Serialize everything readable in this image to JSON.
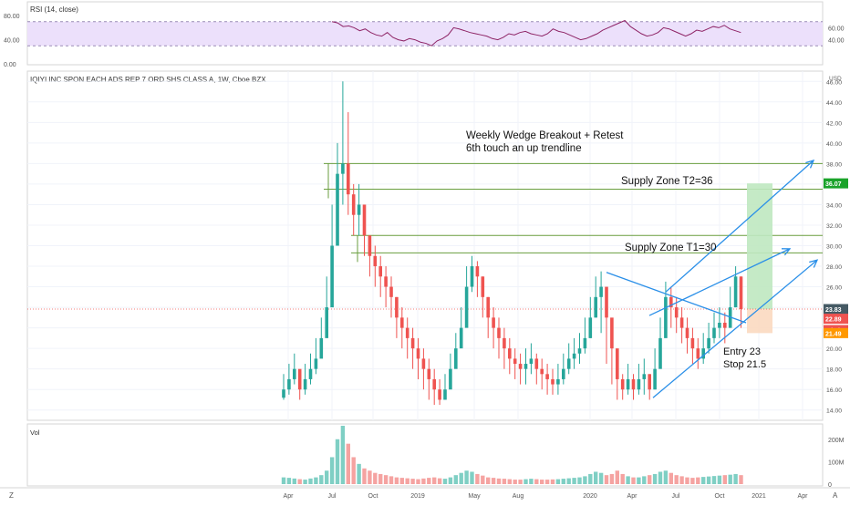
{
  "colors": {
    "up": "#26a69a",
    "down": "#ef5350",
    "up_vol": "#7fcfc4",
    "down_vol": "#f5a3a1",
    "rsi_line": "#8e2466",
    "rsi_band": "#ece0fb",
    "trend": "#2a8fe8",
    "zone": "#6a9e3f",
    "target_box": "#bfe8c0",
    "stop_box": "#fbd9c0",
    "price_tag": "#26a69a",
    "target_tag": "#1aa32a",
    "stop_tag": "#ff9800"
  },
  "rsi_panel": {
    "label": "RSI (14, close)",
    "axis_left": [
      "80.00",
      "40.00",
      "0.00"
    ],
    "axis_right": [
      "60.00",
      "40.00"
    ]
  },
  "price_panel": {
    "symbol_title": "IQIYI INC SPON EACH ADS REP 7 ORD SHS CLASS A, 1W, Cboe BZX",
    "currency": "USD",
    "annotations": {
      "headline_1": "Weekly Wedge Breakout + Retest",
      "headline_2": "6th touch an up trendline",
      "supply_t2": "Supply Zone   T2=36",
      "supply_t1": "Supply Zone   T1=30",
      "entry": "Entry 23",
      "stop": "Stop 21.5"
    },
    "price_tags": {
      "target": "36.07",
      "current": "23.83",
      "mid": "22.89",
      "countdown": "2d 4h",
      "stop": "21.49"
    }
  },
  "volume_panel": {
    "label": "Vol",
    "axis": [
      "200M",
      "100M",
      "0"
    ]
  },
  "time_axis": [
    "Apr",
    "Jul",
    "Oct",
    "2019",
    "May",
    "Aug",
    "2020",
    "Apr",
    "Jul",
    "Oct",
    "2021",
    "Apr"
  ],
  "corner_left": "Z",
  "corner_right": "A",
  "chart_data": [
    {
      "type": "line",
      "name": "rsi",
      "title": "RSI (14, close)",
      "ylim": [
        0,
        100
      ],
      "yticks": [
        60,
        40
      ],
      "values": [
        70,
        68,
        62,
        63,
        60,
        55,
        58,
        52,
        48,
        46,
        52,
        44,
        40,
        38,
        42,
        40,
        36,
        34,
        30,
        38,
        42,
        48,
        60,
        58,
        55,
        52,
        50,
        48,
        46,
        42,
        40,
        44,
        50,
        48,
        52,
        54,
        50,
        48,
        46,
        50,
        58,
        54,
        52,
        48,
        44,
        40,
        42,
        46,
        50,
        56,
        60,
        64,
        68,
        72,
        62,
        56,
        50,
        46,
        48,
        52,
        60,
        58,
        54,
        50,
        46,
        50,
        56,
        54,
        58,
        62,
        60,
        64,
        58,
        55,
        52
      ]
    },
    {
      "type": "candlestick",
      "name": "price",
      "ylabel": "USD",
      "ylim": [
        13,
        47
      ],
      "yticks": [
        14,
        16,
        18,
        20,
        22,
        24,
        26,
        28,
        30,
        32,
        34,
        36,
        38,
        40,
        42,
        44,
        46
      ],
      "close": [
        16,
        17,
        18,
        16,
        17,
        18,
        19,
        21,
        24,
        30,
        37,
        38,
        35,
        33,
        34,
        31,
        29,
        28,
        27,
        26,
        25,
        23,
        22,
        21,
        20,
        19,
        18,
        17,
        16,
        15,
        16,
        18,
        20,
        22,
        26,
        28,
        27,
        25,
        23,
        22,
        21,
        20,
        19,
        18.5,
        18,
        18.5,
        19,
        18,
        17.5,
        17,
        16.5,
        17,
        18,
        19,
        19.5,
        20,
        21,
        23,
        25,
        26,
        23,
        20,
        17,
        16,
        17,
        16,
        17,
        17.5,
        16,
        18,
        21,
        25,
        24,
        23,
        22,
        21,
        20,
        19,
        20,
        21,
        22,
        22.5,
        22,
        24,
        27,
        23.83
      ],
      "high": [
        17.5,
        18.5,
        19.5,
        17.5,
        18.5,
        19.5,
        21,
        23,
        27,
        34,
        40,
        46,
        43,
        36,
        36,
        34,
        31,
        30,
        29,
        28,
        27,
        25,
        24,
        23,
        22,
        21,
        20,
        19,
        18,
        17,
        17.5,
        19.5,
        21.5,
        24,
        28,
        29,
        28.5,
        27,
        25,
        24,
        23,
        22,
        21,
        20,
        19.5,
        20,
        20.5,
        19.5,
        19,
        18.5,
        18,
        18.5,
        19.5,
        20.5,
        21,
        21.5,
        23,
        25,
        27,
        27.5,
        25.5,
        22.5,
        19,
        17.5,
        18.5,
        17.5,
        18.5,
        19,
        17.5,
        20,
        23,
        26.5,
        26,
        25,
        24,
        23,
        22,
        21,
        21.5,
        22.5,
        23.5,
        24,
        23.5,
        26,
        28,
        27
      ],
      "low": [
        15,
        15.5,
        16.5,
        15,
        15.5,
        16.5,
        17.5,
        19.5,
        22,
        27,
        33,
        34,
        33,
        31,
        31,
        29,
        27,
        26,
        25,
        24,
        23,
        21,
        20,
        19,
        18,
        17,
        16,
        15,
        14.5,
        14.5,
        15,
        16.5,
        18.5,
        20.5,
        23,
        25.5,
        25,
        23,
        21,
        20,
        19,
        18,
        17.5,
        17,
        16.5,
        16.5,
        17.5,
        16.5,
        16,
        15.5,
        15.5,
        15.5,
        16.5,
        17.5,
        18,
        18.5,
        19.5,
        21,
        23,
        21.5,
        18.5,
        16.5,
        15,
        15,
        15.5,
        15,
        15.5,
        15.5,
        15,
        16,
        18.5,
        22,
        22,
        21.5,
        20.5,
        19.5,
        18.5,
        18,
        18.5,
        19.5,
        20.5,
        21,
        20.5,
        22,
        24,
        22
      ]
    },
    {
      "type": "bar",
      "name": "volume",
      "ylabel": "Vol",
      "ylim": [
        0,
        260
      ],
      "values": [
        30,
        28,
        25,
        22,
        20,
        25,
        30,
        40,
        60,
        120,
        200,
        260,
        180,
        120,
        90,
        70,
        60,
        50,
        45,
        40,
        35,
        30,
        28,
        26,
        24,
        22,
        25,
        28,
        30,
        26,
        24,
        30,
        40,
        50,
        60,
        55,
        45,
        38,
        30,
        28,
        25,
        24,
        22,
        20,
        20,
        22,
        24,
        22,
        20,
        20,
        21,
        22,
        24,
        26,
        28,
        30,
        35,
        45,
        55,
        50,
        40,
        45,
        60,
        45,
        35,
        30,
        30,
        35,
        40,
        45,
        55,
        60,
        50,
        40,
        35,
        30,
        28,
        30,
        32,
        34,
        36,
        38,
        40,
        42,
        45,
        40
      ]
    }
  ]
}
